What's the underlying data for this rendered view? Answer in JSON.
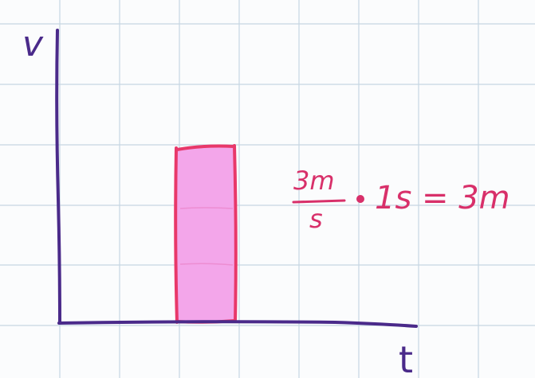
{
  "axes": {
    "y_label": "v",
    "x_label": "t"
  },
  "area_rectangle": {
    "fill_color": "#f3a6ea",
    "edge_color": "#e8386a"
  },
  "equation": {
    "numerator": "3m",
    "denominator": "s",
    "rest": "1s = 3m"
  },
  "colors": {
    "grid": "#c6d6e3",
    "axis": "#4a2a8a",
    "ink": "#d8306a"
  }
}
